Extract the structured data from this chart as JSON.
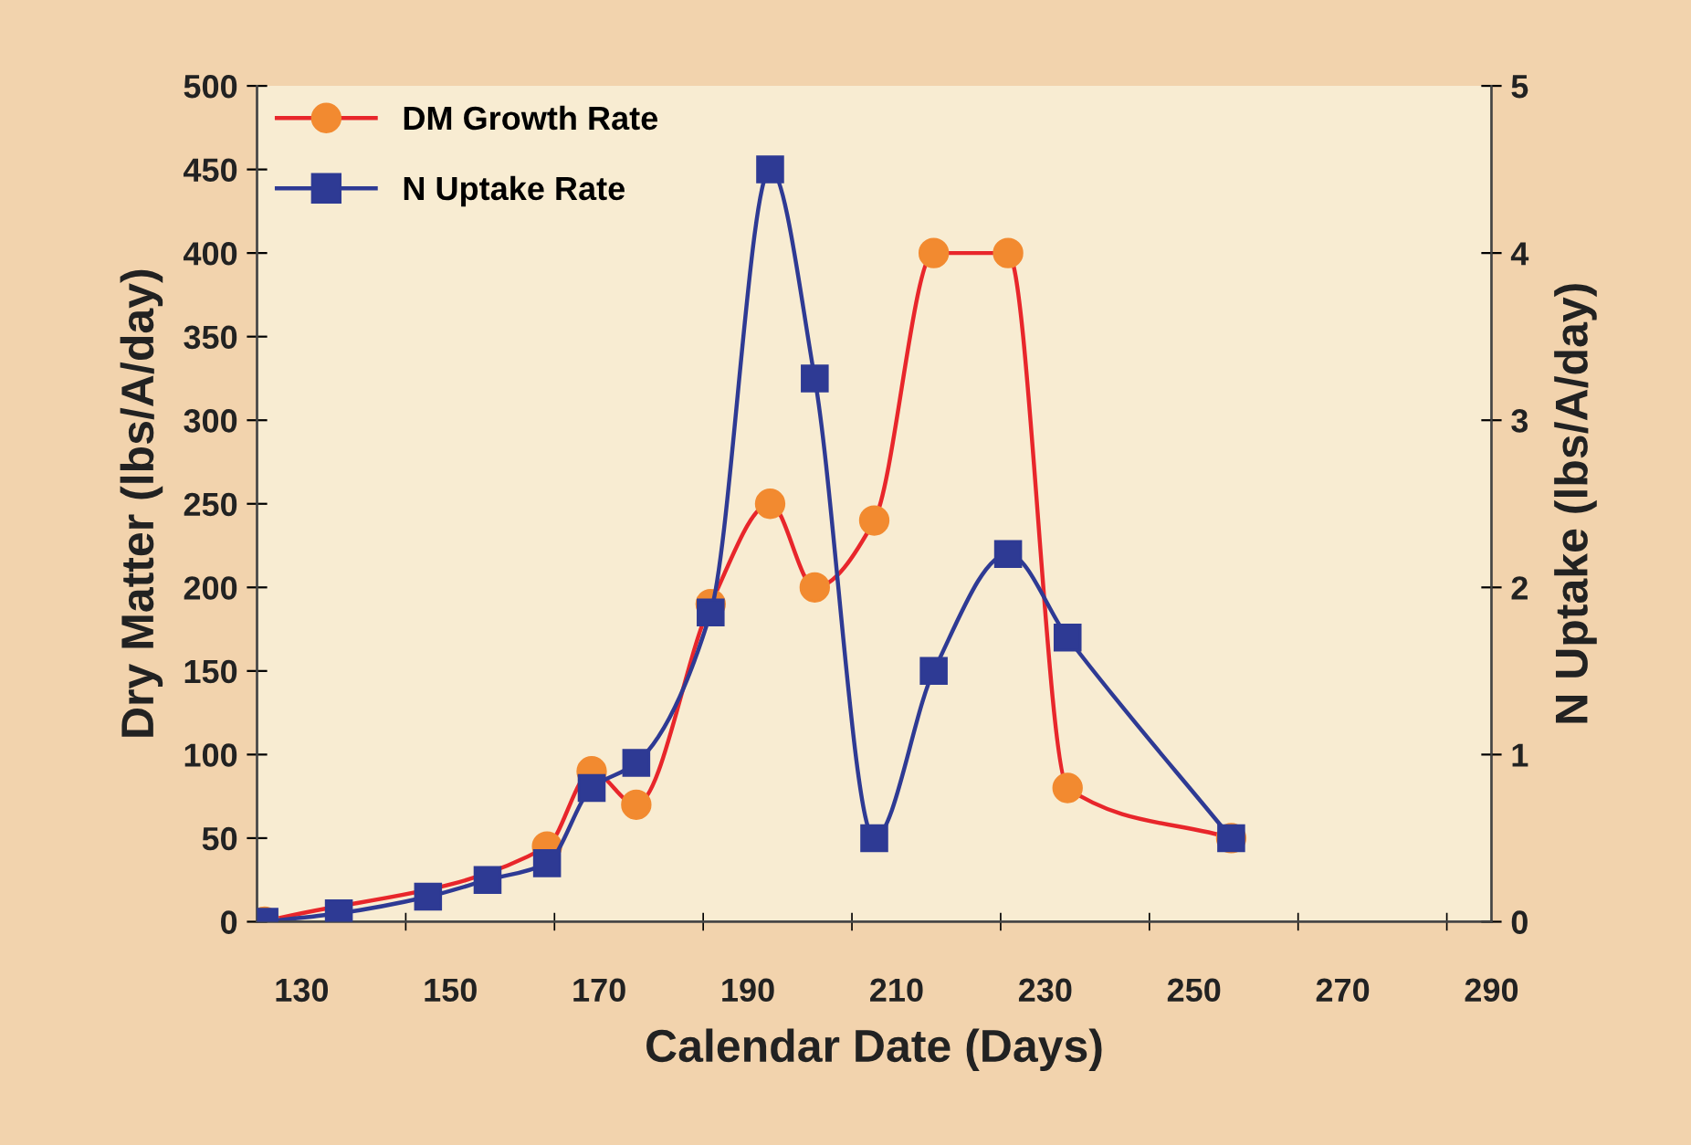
{
  "chart_data": {
    "type": "line",
    "xlabel": "Calendar Date (Days)",
    "ylabel": "Dry Matter (lbs/A/day)",
    "y2label": "N Uptake (lbs/A/day)",
    "xlim": [
      124,
      290
    ],
    "xticks": [
      130,
      150,
      170,
      190,
      210,
      230,
      250,
      270,
      290,
      {
        "value": 144,
        "label": null
      },
      {
        "value": 164,
        "label": null
      },
      {
        "value": 184,
        "label": null
      },
      {
        "value": 204,
        "label": null
      },
      {
        "value": 224,
        "label": null
      },
      {
        "value": 244,
        "label": null
      },
      {
        "value": 264,
        "label": null
      },
      {
        "value": 284,
        "label": null
      }
    ],
    "ylim": [
      0,
      500
    ],
    "yticks": [
      0,
      50,
      100,
      150,
      200,
      250,
      300,
      350,
      400,
      450,
      500
    ],
    "y2lim": [
      0,
      5
    ],
    "y2ticks": [
      0,
      1,
      2,
      3,
      4,
      5
    ],
    "x": [
      125,
      135,
      147,
      155,
      163,
      169,
      175,
      185,
      193,
      199,
      207,
      215,
      225,
      233,
      255
    ],
    "series": [
      {
        "name": "DM Growth Rate",
        "color": "#f28a30",
        "marker": "circle",
        "values": [
          0,
          null,
          null,
          null,
          45,
          90,
          70,
          190,
          250,
          200,
          240,
          400,
          400,
          80,
          50
        ]
      },
      {
        "name": "N Uptake Rate",
        "color": "#2e3a94",
        "marker": "square",
        "axis": "y2",
        "values": [
          0,
          0.05,
          0.15,
          0.25,
          0.35,
          0.8,
          0.95,
          1.85,
          4.5,
          3.25,
          0.5,
          1.5,
          2.2,
          1.7,
          0.5
        ]
      }
    ],
    "grid": false,
    "legend": "top left"
  }
}
